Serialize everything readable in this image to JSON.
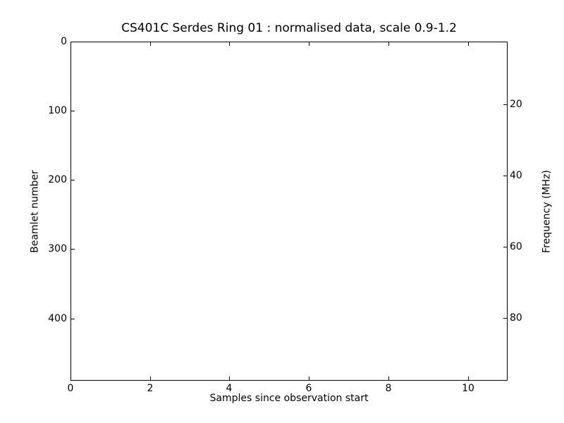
{
  "figure": {
    "background_color": "#ffffff",
    "axes_color": "#000000",
    "text_color": "#000000"
  },
  "chart_data": {
    "type": "heatmap",
    "title": "CS401C Serdes Ring 01 : normalised data, scale 0.9-1.2",
    "xlabel": "Samples since observation start",
    "ylabel_left": "Beamlet number",
    "ylabel_right": "Frequency (MHz)",
    "xlim": [
      0,
      11
    ],
    "x_ticks": [
      0,
      2,
      4,
      6,
      8,
      10
    ],
    "ylim_left": [
      0,
      490
    ],
    "y_left_inverted": true,
    "y_ticks_left": [
      0,
      100,
      200,
      300,
      400
    ],
    "ylim_right_mhz": [
      2.3,
      97.7
    ],
    "y_ticks_right": [
      20,
      40,
      60,
      80
    ],
    "grid": false,
    "legend": null,
    "tick_direction": "in",
    "series": [],
    "plot_area_content": "blank white (no data pixels rendered)"
  }
}
